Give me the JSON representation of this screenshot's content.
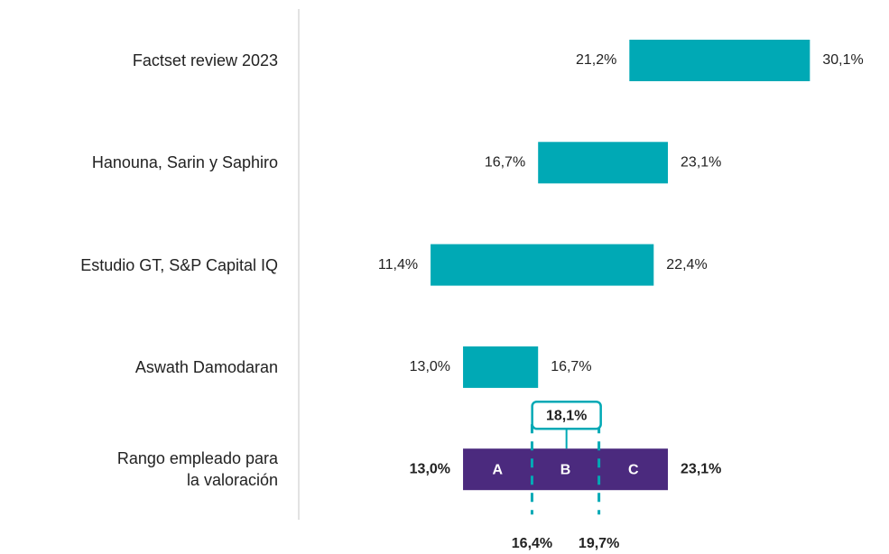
{
  "chart_data": {
    "type": "floating-bar",
    "categories": [
      "Factset review 2023",
      "Hanouna, Sarin y Saphiro",
      "Estudio GT, S&P Capital IQ",
      "Aswath Damodaran",
      "Rango empleado para\nla valoración"
    ],
    "starts": [
      21.2,
      16.7,
      11.4,
      13.0,
      13.0
    ],
    "starts_labels": [
      "21,2%",
      "16,7%",
      "11,4%",
      "13,0%",
      "13,0%"
    ],
    "ends": [
      30.1,
      23.1,
      22.4,
      16.7,
      23.1
    ],
    "ends_labels": [
      "30,1%",
      "23,1%",
      "22,4%",
      "16,7%",
      "23,1%"
    ],
    "color": "#00a9b5",
    "range": {
      "color": "#4b2a7e",
      "segments": [
        "A",
        "B",
        "C"
      ],
      "cuts": [
        16.4,
        19.7
      ],
      "cut_labels": [
        "16,4%",
        "19,7%"
      ],
      "marker": 18.1,
      "marker_label": "18,1%"
    },
    "xlim": [
      4.9,
      34.0
    ]
  }
}
